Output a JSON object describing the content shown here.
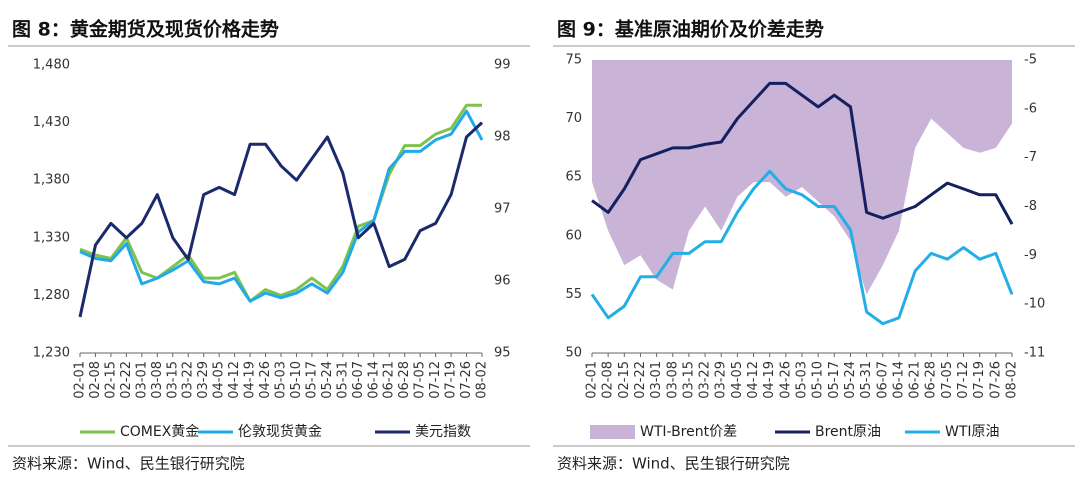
{
  "chart_data": [
    {
      "type": "line",
      "title": "图 8：黄金期货及现货价格走势",
      "source": "资料来源：Wind、民生银行研究院",
      "categories": [
        "02-01",
        "02-08",
        "02-15",
        "02-22",
        "03-01",
        "03-08",
        "03-15",
        "03-22",
        "03-29",
        "04-05",
        "04-12",
        "04-19",
        "04-26",
        "05-03",
        "05-10",
        "05-17",
        "05-24",
        "05-31",
        "06-07",
        "06-14",
        "06-21",
        "06-28",
        "07-05",
        "07-12",
        "07-19",
        "07-26",
        "08-02"
      ],
      "ylim": [
        1230,
        1480
      ],
      "yticks": [
        {
          "value": 1230,
          "label": "1,230"
        },
        {
          "value": 1280,
          "label": "1,280"
        },
        {
          "value": 1330,
          "label": "1,330"
        },
        {
          "value": 1380,
          "label": "1,380"
        },
        {
          "value": 1430,
          "label": "1,430"
        },
        {
          "value": 1480,
          "label": "1,480"
        }
      ],
      "y2lim": [
        95,
        99
      ],
      "y2ticks": [
        95,
        96,
        97,
        98,
        99
      ],
      "series": [
        {
          "name": "COMEX黄金",
          "color": "#7dc24b",
          "values": [
            1320,
            1315,
            1312,
            1330,
            1300,
            1295,
            1305,
            1315,
            1295,
            1295,
            1300,
            1275,
            1285,
            1280,
            1285,
            1295,
            1285,
            1305,
            1340,
            1345,
            1385,
            1410,
            1410,
            1420,
            1425,
            1445,
            1445
          ]
        },
        {
          "name": "伦敦现货黄金",
          "color": "#22a9e8",
          "values": [
            1318,
            1312,
            1310,
            1325,
            1290,
            1295,
            1302,
            1310,
            1292,
            1290,
            1295,
            1275,
            1282,
            1278,
            1282,
            1290,
            1282,
            1300,
            1335,
            1345,
            1390,
            1405,
            1405,
            1415,
            1420,
            1440,
            1415
          ]
        },
        {
          "name": "美元指数",
          "color": "#1a2a6c",
          "axis": "y2",
          "values": [
            95.5,
            96.5,
            96.8,
            96.6,
            96.8,
            97.2,
            96.6,
            96.3,
            97.2,
            97.3,
            97.2,
            97.9,
            97.9,
            97.6,
            97.4,
            97.7,
            98.0,
            97.5,
            96.6,
            96.8,
            96.2,
            96.3,
            96.7,
            96.8,
            97.2,
            98.0,
            98.2
          ]
        }
      ]
    },
    {
      "type": "line",
      "title": "图 9：基准原油期价及价差走势",
      "source": "资料来源：Wind、民生银行研究院",
      "categories": [
        "02-01",
        "02-08",
        "02-15",
        "02-22",
        "03-01",
        "03-08",
        "03-15",
        "03-22",
        "03-29",
        "04-05",
        "04-12",
        "04-19",
        "04-26",
        "05-03",
        "05-10",
        "05-17",
        "05-24",
        "05-31",
        "06-07",
        "06-14",
        "06-21",
        "06-28",
        "07-05",
        "07-12",
        "07-19",
        "07-26",
        "08-02"
      ],
      "ylim": [
        50,
        75
      ],
      "yticks": [
        50,
        55,
        60,
        65,
        70,
        75
      ],
      "y2lim": [
        -11,
        -5
      ],
      "y2ticks": [
        -11,
        -10,
        -9,
        -8,
        -7,
        -6,
        -5
      ],
      "series": [
        {
          "name": "WTI-Brent价差",
          "type": "area",
          "color": "#c9b3d6",
          "axis": "y2",
          "values": [
            -7.5,
            -8.5,
            -9.2,
            -9.0,
            -9.5,
            -9.7,
            -8.5,
            -8.0,
            -8.5,
            -7.8,
            -7.5,
            -7.5,
            -7.8,
            -7.6,
            -7.9,
            -8.2,
            -8.7,
            -9.8,
            -9.2,
            -8.5,
            -6.8,
            -6.2,
            -6.5,
            -6.8,
            -6.9,
            -6.8,
            -6.3
          ]
        },
        {
          "name": "Brent原油",
          "color": "#142060",
          "values": [
            63,
            62,
            64,
            66.5,
            67,
            67.5,
            67.5,
            67.8,
            68,
            70,
            71.5,
            73,
            73,
            72,
            71,
            72,
            71,
            62,
            61.5,
            62,
            62.5,
            63.5,
            64.5,
            64,
            63.5,
            63.5,
            61
          ]
        },
        {
          "name": "WTI原油",
          "color": "#23aee8",
          "values": [
            55,
            53,
            54,
            56.5,
            56.5,
            58.5,
            58.5,
            59.5,
            59.5,
            62,
            64,
            65.5,
            64,
            63.5,
            62.5,
            62.5,
            60.5,
            53.5,
            52.5,
            53,
            57,
            58.5,
            58,
            59,
            58,
            58.5,
            55
          ]
        }
      ]
    }
  ]
}
